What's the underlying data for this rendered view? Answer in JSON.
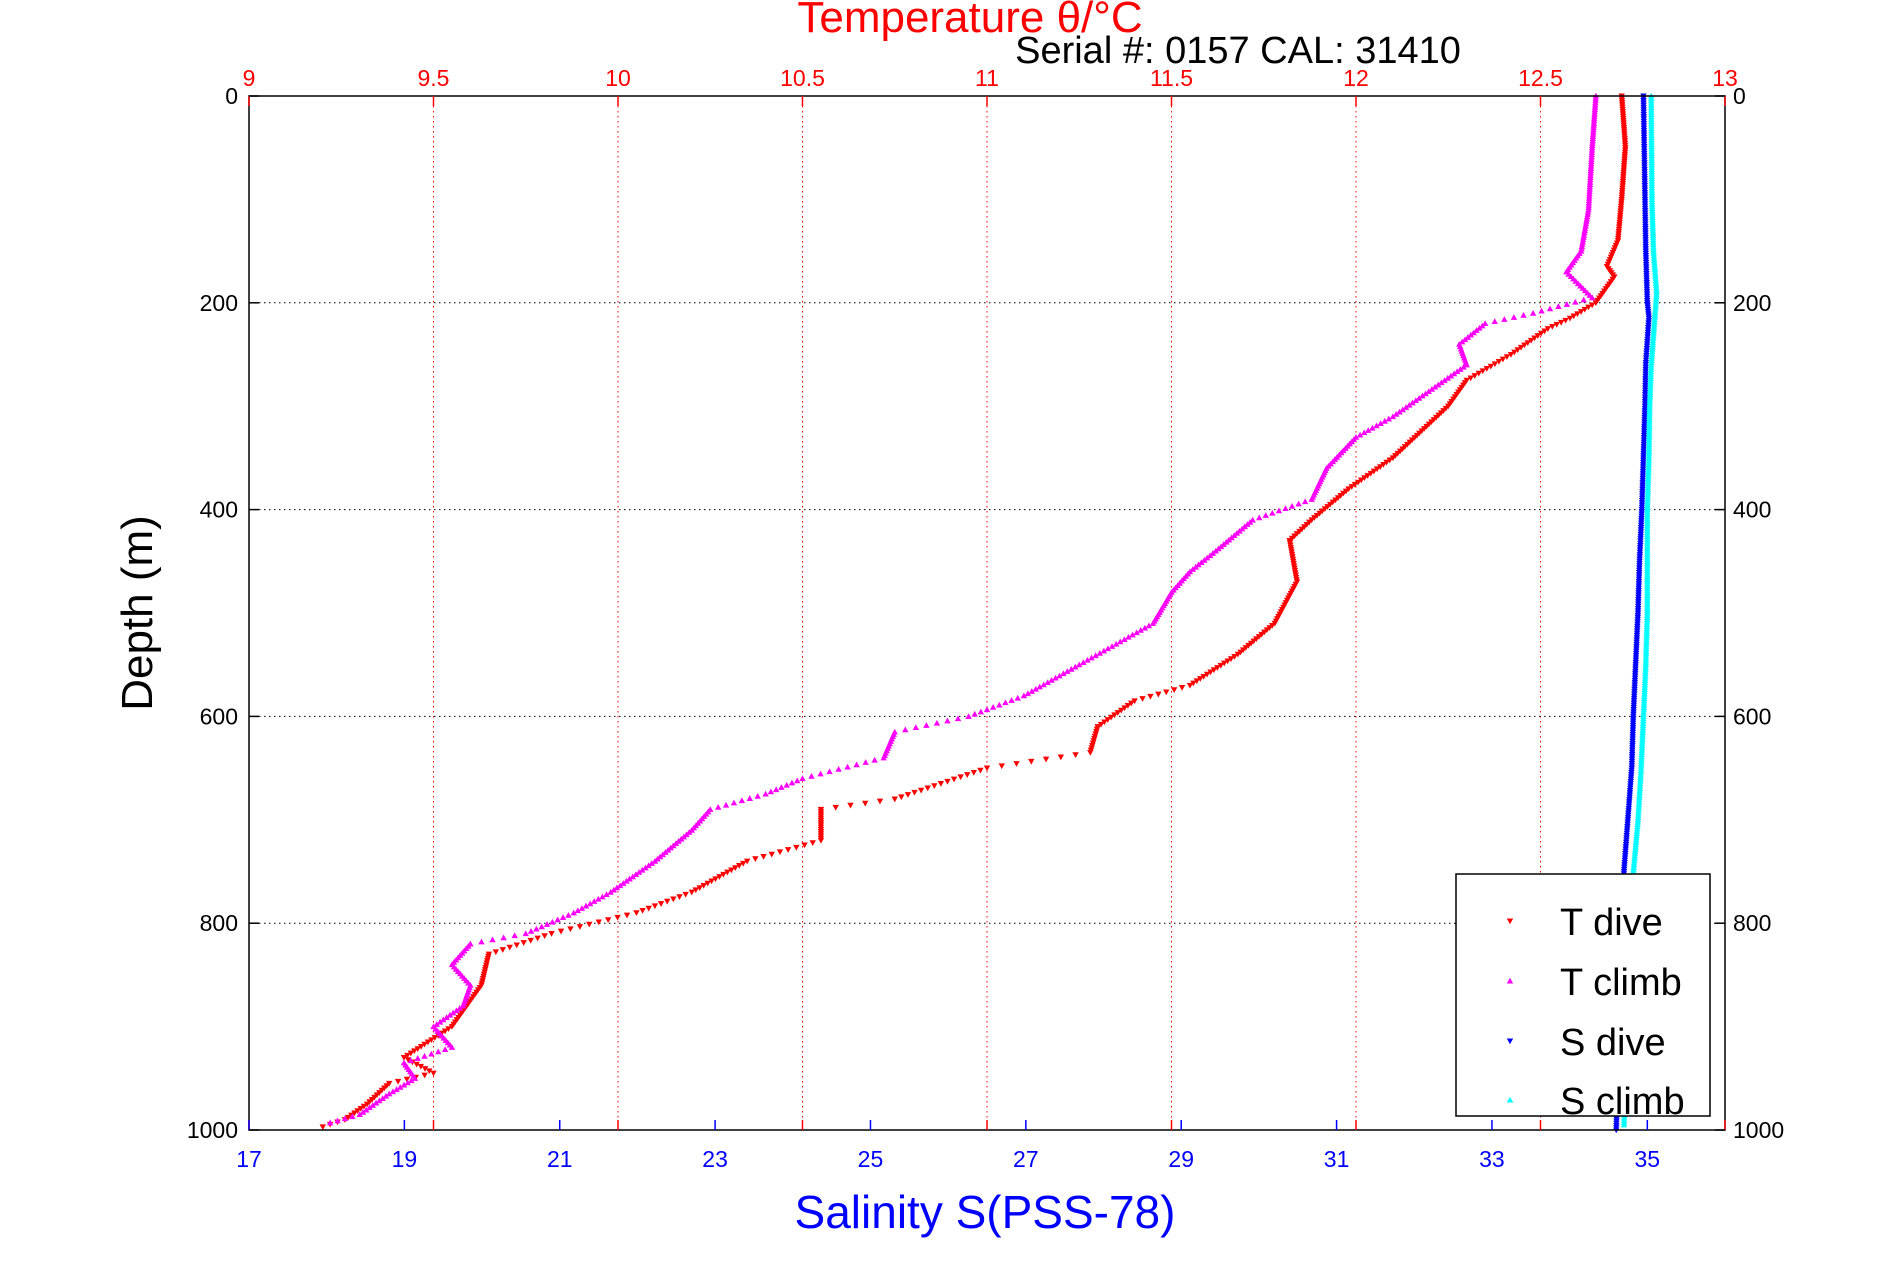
{
  "chart_data": {
    "type": "scatter",
    "title": "Temperature θ/°C",
    "subtitle": "Serial #: 0157  CAL: 31410",
    "x_top_label": "Temperature θ/°C",
    "x_bottom_label": "Salinity S(PSS-78)",
    "ylabel": "Depth (m)",
    "temperature_lim": [
      9,
      13
    ],
    "salinity_lim": [
      17,
      36
    ],
    "depth_lim": [
      0,
      1000
    ],
    "y_reversed": true,
    "grid": true,
    "legend_position": "bottom-right",
    "temperature_ticks": [
      "9",
      "9.5",
      "10",
      "10.5",
      "11",
      "11.5",
      "12",
      "12.5",
      "13"
    ],
    "salinity_ticks": [
      "17",
      "19",
      "21",
      "23",
      "25",
      "27",
      "29",
      "31",
      "33",
      "35"
    ],
    "depth_ticks": [
      "0",
      "200",
      "400",
      "600",
      "800",
      "1000"
    ],
    "colors": {
      "t_dive": "#ff0000",
      "t_climb": "#ff00ff",
      "s_dive": "#0000ff",
      "s_climb": "#00ffff",
      "t_axis": "#ff0000",
      "s_axis": "#0000ff"
    },
    "series": [
      {
        "name": "T dive",
        "axis": "temperature",
        "marker": "triangle-down",
        "points": [
          [
            12.72,
            0
          ],
          [
            12.73,
            50
          ],
          [
            12.72,
            100
          ],
          [
            12.71,
            140
          ],
          [
            12.68,
            165
          ],
          [
            12.7,
            175
          ],
          [
            12.65,
            200
          ],
          [
            12.58,
            215
          ],
          [
            12.52,
            225
          ],
          [
            12.42,
            250
          ],
          [
            12.3,
            275
          ],
          [
            12.25,
            300
          ],
          [
            12.1,
            350
          ],
          [
            11.98,
            380
          ],
          [
            11.88,
            410
          ],
          [
            11.82,
            430
          ],
          [
            11.84,
            470
          ],
          [
            11.78,
            510
          ],
          [
            11.68,
            540
          ],
          [
            11.55,
            570
          ],
          [
            11.4,
            585
          ],
          [
            11.3,
            610
          ],
          [
            11.28,
            635
          ],
          [
            11.0,
            650
          ],
          [
            10.75,
            680
          ],
          [
            10.55,
            690
          ],
          [
            10.55,
            720
          ],
          [
            10.35,
            740
          ],
          [
            10.2,
            770
          ],
          [
            10.05,
            790
          ],
          [
            9.82,
            810
          ],
          [
            9.65,
            830
          ],
          [
            9.63,
            860
          ],
          [
            9.55,
            900
          ],
          [
            9.42,
            930
          ],
          [
            9.5,
            945
          ],
          [
            9.38,
            955
          ],
          [
            9.32,
            975
          ],
          [
            9.26,
            990
          ],
          [
            9.2,
            997
          ]
        ]
      },
      {
        "name": "T climb",
        "axis": "temperature",
        "marker": "triangle-up",
        "points": [
          [
            12.65,
            0
          ],
          [
            12.64,
            50
          ],
          [
            12.63,
            110
          ],
          [
            12.61,
            150
          ],
          [
            12.57,
            170
          ],
          [
            12.64,
            195
          ],
          [
            12.48,
            210
          ],
          [
            12.35,
            220
          ],
          [
            12.28,
            240
          ],
          [
            12.3,
            260
          ],
          [
            12.18,
            290
          ],
          [
            12.1,
            310
          ],
          [
            12.0,
            330
          ],
          [
            11.92,
            360
          ],
          [
            11.88,
            390
          ],
          [
            11.72,
            410
          ],
          [
            11.62,
            440
          ],
          [
            11.55,
            460
          ],
          [
            11.5,
            480
          ],
          [
            11.45,
            510
          ],
          [
            11.25,
            550
          ],
          [
            11.1,
            580
          ],
          [
            10.95,
            600
          ],
          [
            10.75,
            615
          ],
          [
            10.72,
            640
          ],
          [
            10.5,
            660
          ],
          [
            10.4,
            675
          ],
          [
            10.25,
            690
          ],
          [
            10.2,
            710
          ],
          [
            10.1,
            740
          ],
          [
            9.98,
            770
          ],
          [
            9.88,
            790
          ],
          [
            9.75,
            810
          ],
          [
            9.6,
            820
          ],
          [
            9.55,
            840
          ],
          [
            9.6,
            860
          ],
          [
            9.58,
            880
          ],
          [
            9.5,
            900
          ],
          [
            9.55,
            920
          ],
          [
            9.42,
            935
          ],
          [
            9.45,
            950
          ],
          [
            9.38,
            965
          ],
          [
            9.3,
            985
          ],
          [
            9.22,
            993
          ]
        ]
      },
      {
        "name": "S dive",
        "axis": "salinity",
        "marker": "triangle-down",
        "points": [
          [
            34.95,
            0
          ],
          [
            34.97,
            100
          ],
          [
            34.98,
            150
          ],
          [
            35.0,
            200
          ],
          [
            35.02,
            215
          ],
          [
            34.98,
            260
          ],
          [
            34.97,
            300
          ],
          [
            34.95,
            350
          ],
          [
            34.93,
            400
          ],
          [
            34.9,
            450
          ],
          [
            34.88,
            500
          ],
          [
            34.85,
            550
          ],
          [
            34.82,
            600
          ],
          [
            34.8,
            650
          ],
          [
            34.75,
            700
          ],
          [
            34.7,
            750
          ],
          [
            34.68,
            800
          ],
          [
            34.65,
            850
          ],
          [
            34.63,
            900
          ],
          [
            34.62,
            950
          ],
          [
            34.6,
            1000
          ]
        ]
      },
      {
        "name": "S climb",
        "axis": "salinity",
        "marker": "triangle-up",
        "points": [
          [
            35.05,
            0
          ],
          [
            35.06,
            100
          ],
          [
            35.08,
            150
          ],
          [
            35.12,
            190
          ],
          [
            35.08,
            230
          ],
          [
            35.05,
            260
          ],
          [
            35.03,
            300
          ],
          [
            35.02,
            350
          ],
          [
            35.0,
            400
          ],
          [
            35.0,
            450
          ],
          [
            35.0,
            500
          ],
          [
            34.98,
            550
          ],
          [
            34.95,
            600
          ],
          [
            34.92,
            650
          ],
          [
            34.88,
            700
          ],
          [
            34.82,
            750
          ],
          [
            34.8,
            800
          ],
          [
            34.78,
            850
          ],
          [
            34.75,
            900
          ],
          [
            34.72,
            950
          ],
          [
            34.7,
            995
          ]
        ]
      }
    ]
  }
}
